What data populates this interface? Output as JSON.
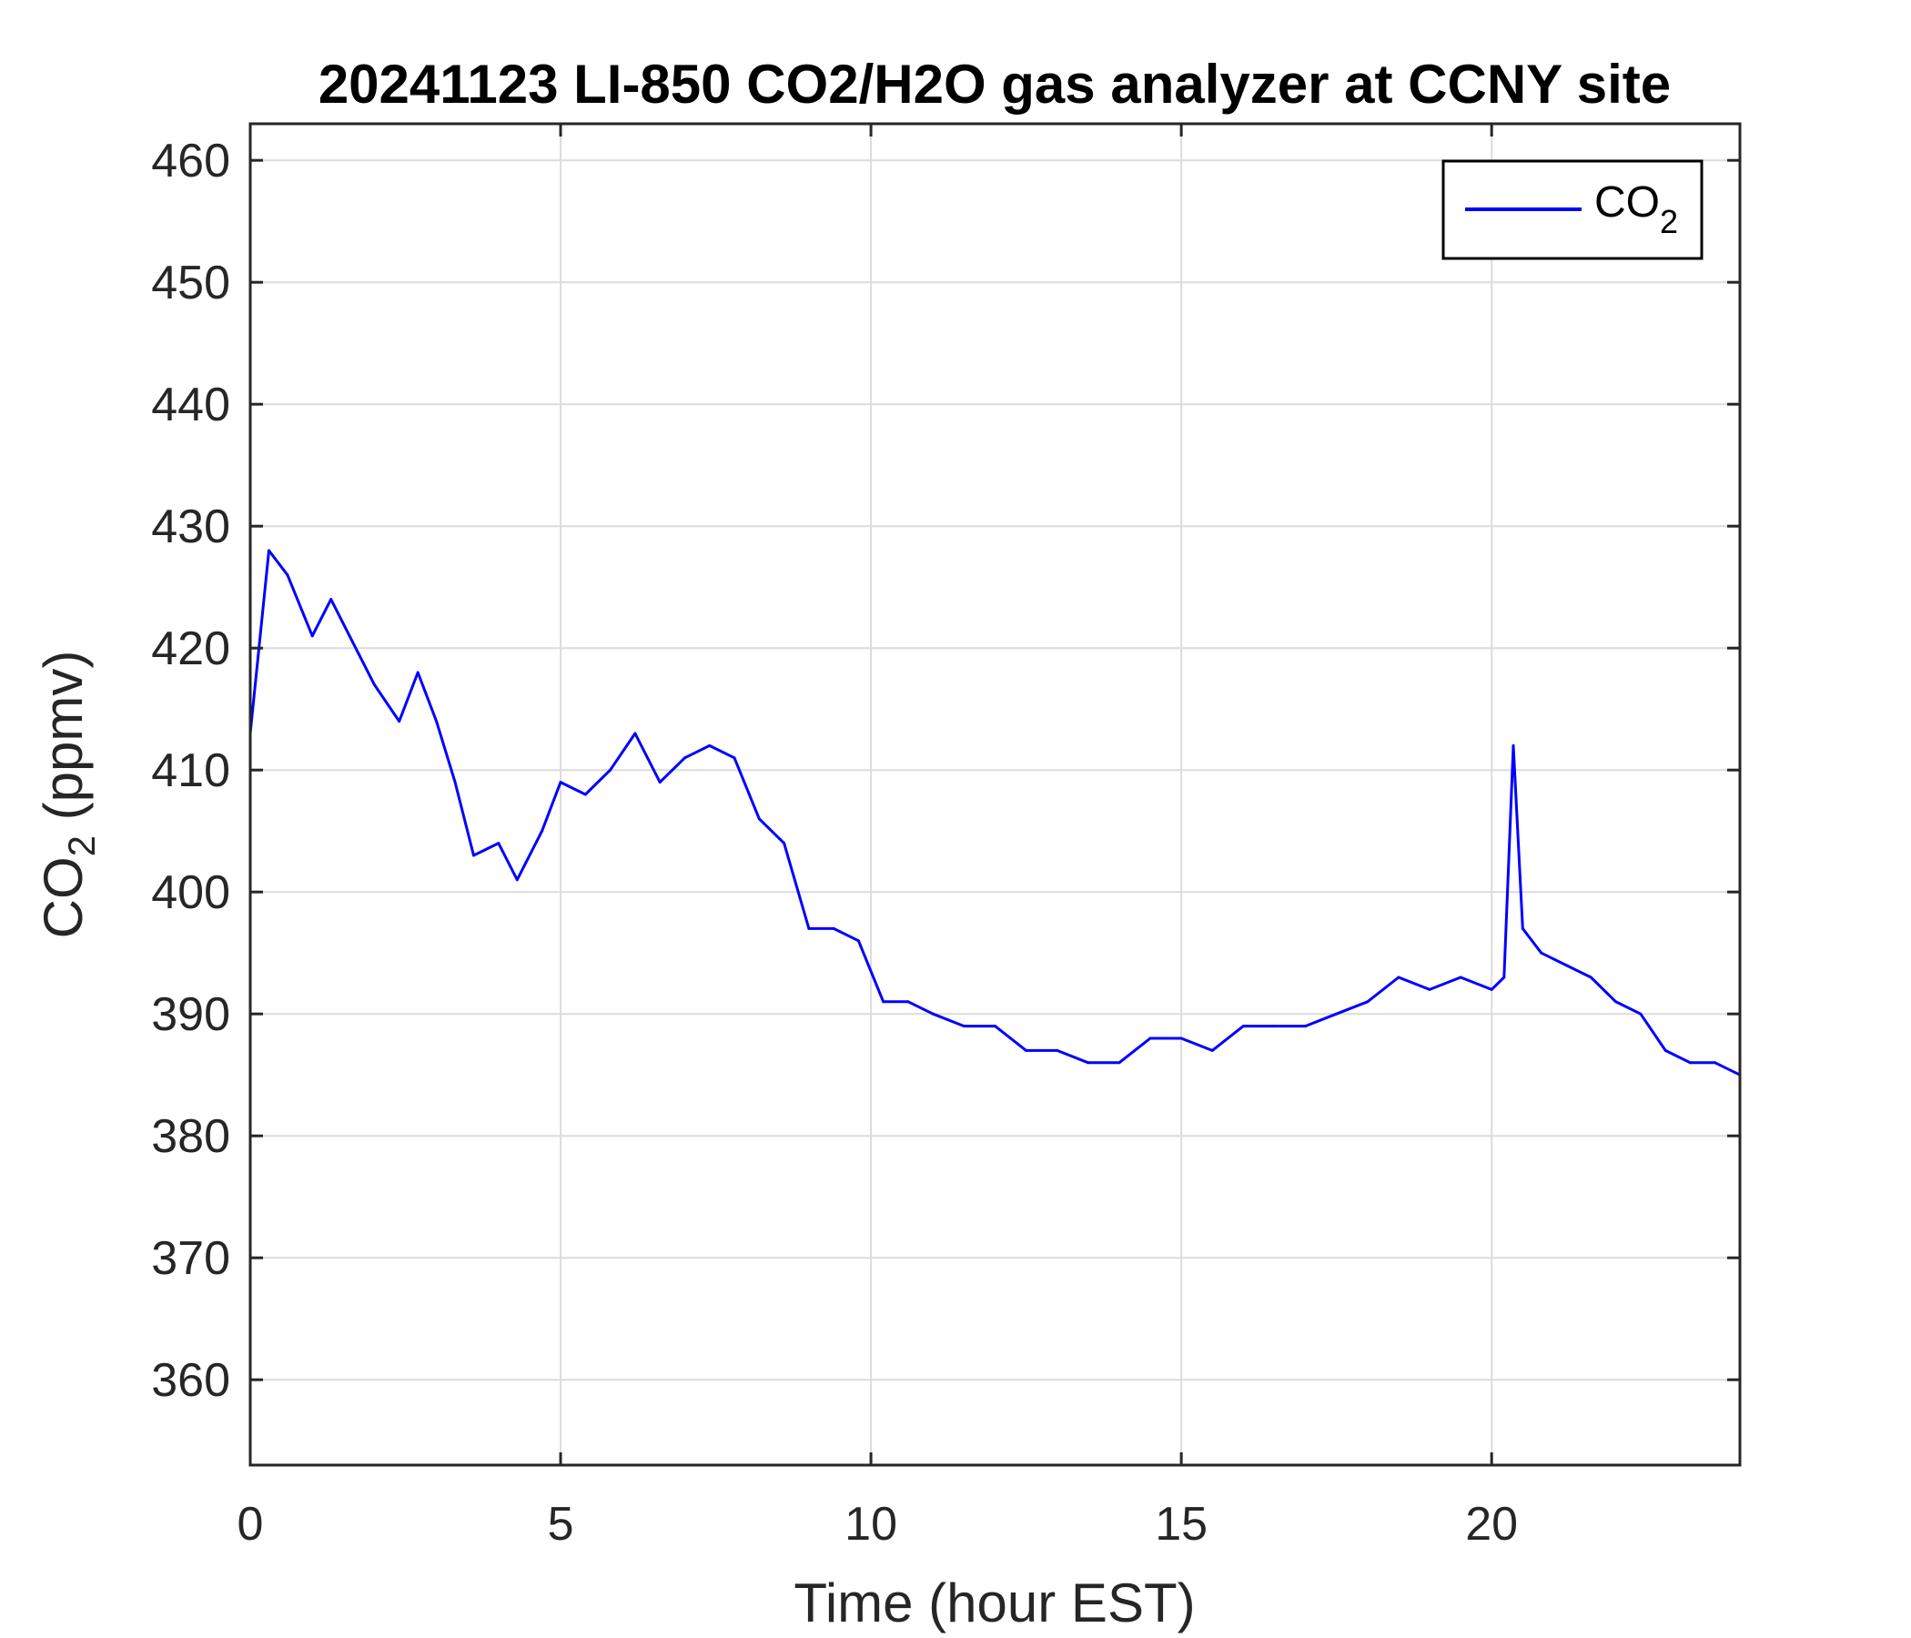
{
  "chart_data": {
    "type": "line",
    "title": "20241123 LI-850 CO2/H2O gas analyzer at CCNY site",
    "xlabel": "Time (hour EST)",
    "ylabel": {
      "main": "CO",
      "sub": "2",
      "tail": " (ppmv)"
    },
    "xlim": [
      0,
      24
    ],
    "ylim": [
      353,
      463
    ],
    "xticks": [
      0,
      5,
      10,
      15,
      20
    ],
    "yticks": [
      360,
      370,
      380,
      390,
      400,
      410,
      420,
      430,
      440,
      450,
      460
    ],
    "grid": true,
    "legend": {
      "position": "top-right"
    },
    "series": [
      {
        "name": {
          "main": "CO",
          "sub": "2"
        },
        "color": "#0000ff",
        "x": [
          0,
          0.3,
          0.6,
          1.0,
          1.3,
          1.6,
          2.0,
          2.4,
          2.7,
          3.0,
          3.3,
          3.6,
          4.0,
          4.3,
          4.7,
          5.0,
          5.4,
          5.8,
          6.2,
          6.6,
          7.0,
          7.4,
          7.8,
          8.2,
          8.6,
          9.0,
          9.4,
          9.8,
          10.2,
          10.6,
          11.0,
          11.5,
          12.0,
          12.5,
          13.0,
          13.5,
          14.0,
          14.5,
          15.0,
          15.5,
          16.0,
          16.5,
          17.0,
          17.5,
          18.0,
          18.5,
          19.0,
          19.5,
          20.0,
          20.2,
          20.35,
          20.5,
          20.8,
          21.2,
          21.6,
          22.0,
          22.4,
          22.8,
          23.2,
          23.6,
          24.0
        ],
        "y": [
          413,
          428,
          426,
          421,
          424,
          421,
          417,
          414,
          418,
          414,
          409,
          403,
          404,
          401,
          405,
          409,
          408,
          410,
          413,
          409,
          411,
          412,
          411,
          406,
          404,
          397,
          397,
          396,
          391,
          391,
          390,
          389,
          389,
          387,
          387,
          386,
          386,
          388,
          388,
          387,
          389,
          389,
          389,
          390,
          391,
          393,
          392,
          393,
          392,
          393,
          412,
          397,
          395,
          394,
          393,
          391,
          390,
          387,
          386,
          386,
          385
        ]
      }
    ]
  }
}
